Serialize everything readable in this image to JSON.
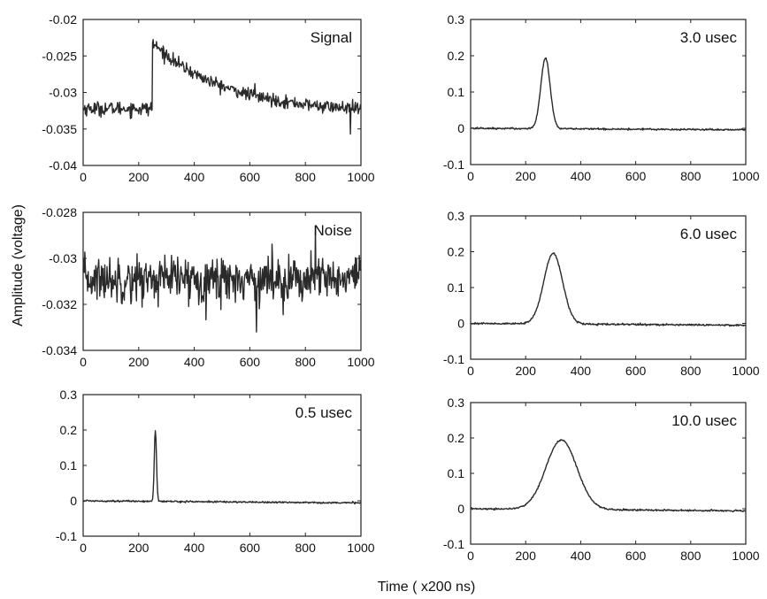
{
  "figure": {
    "ylabel": "Amplitude (voltage)",
    "xlabel": "Time ( x200 ns)"
  },
  "chart_data": [
    {
      "type": "line",
      "panel": "left-1",
      "label": "Signal",
      "xlim": [
        0,
        1000
      ],
      "ylim": [
        -0.04,
        -0.02
      ],
      "xticks": [
        "0",
        "200",
        "400",
        "600",
        "800",
        "1000"
      ],
      "yticks": [
        "-0.02",
        "-0.025",
        "-0.03",
        "-0.035",
        "-0.04"
      ],
      "shape": "step-decay",
      "params": {
        "baseline": -0.0322,
        "peak": -0.0232,
        "onset": 250,
        "tau": 260,
        "end": -0.0328,
        "noise": 0.0006
      }
    },
    {
      "type": "line",
      "panel": "left-2",
      "label": "Noise",
      "xlim": [
        0,
        1000
      ],
      "ylim": [
        -0.034,
        -0.028
      ],
      "xticks": [
        "0",
        "200",
        "400",
        "600",
        "800",
        "1000"
      ],
      "yticks": [
        "-0.028",
        "-0.03",
        "-0.032",
        "-0.034"
      ],
      "shape": "noise",
      "params": {
        "baseline": -0.0309,
        "noise": 0.0005
      }
    },
    {
      "type": "line",
      "panel": "left-3",
      "label": "0.5 usec",
      "xlim": [
        0,
        1000
      ],
      "ylim": [
        -0.1,
        0.3
      ],
      "xticks": [
        "0",
        "200",
        "400",
        "600",
        "800",
        "1000"
      ],
      "yticks": [
        "0.3",
        "0.2",
        "0.1",
        "0",
        "-0.1"
      ],
      "shape": "pulse",
      "params": {
        "center": 260,
        "width": 4,
        "amplitude": 0.2,
        "tail": -0.006
      }
    },
    {
      "type": "line",
      "panel": "right-1",
      "label": "3.0 usec",
      "xlim": [
        0,
        1000
      ],
      "ylim": [
        -0.1,
        0.3
      ],
      "xticks": [
        "0",
        "200",
        "400",
        "600",
        "800",
        "1000"
      ],
      "yticks": [
        "0.3",
        "0.2",
        "0.1",
        "0",
        "-0.1"
      ],
      "shape": "pulse",
      "params": {
        "center": 272,
        "width": 17,
        "amplitude": 0.195,
        "tail": -0.004
      }
    },
    {
      "type": "line",
      "panel": "right-2",
      "label": "6.0 usec",
      "xlim": [
        0,
        1000
      ],
      "ylim": [
        -0.1,
        0.3
      ],
      "xticks": [
        "0",
        "200",
        "400",
        "600",
        "800",
        "1000"
      ],
      "yticks": [
        "0.3",
        "0.2",
        "0.1",
        "0",
        "-0.1"
      ],
      "shape": "pulse",
      "params": {
        "center": 300,
        "width": 34,
        "amplitude": 0.197,
        "tail": -0.005
      }
    },
    {
      "type": "line",
      "panel": "right-3",
      "label": "10.0 usec",
      "xlim": [
        0,
        1000
      ],
      "ylim": [
        -0.1,
        0.3
      ],
      "xticks": [
        "0",
        "200",
        "400",
        "600",
        "800",
        "1000"
      ],
      "yticks": [
        "0.3",
        "0.2",
        "0.1",
        "0",
        "-0.1"
      ],
      "shape": "pulse",
      "params": {
        "center": 330,
        "width": 56,
        "amplitude": 0.197,
        "tail": -0.006
      }
    }
  ]
}
